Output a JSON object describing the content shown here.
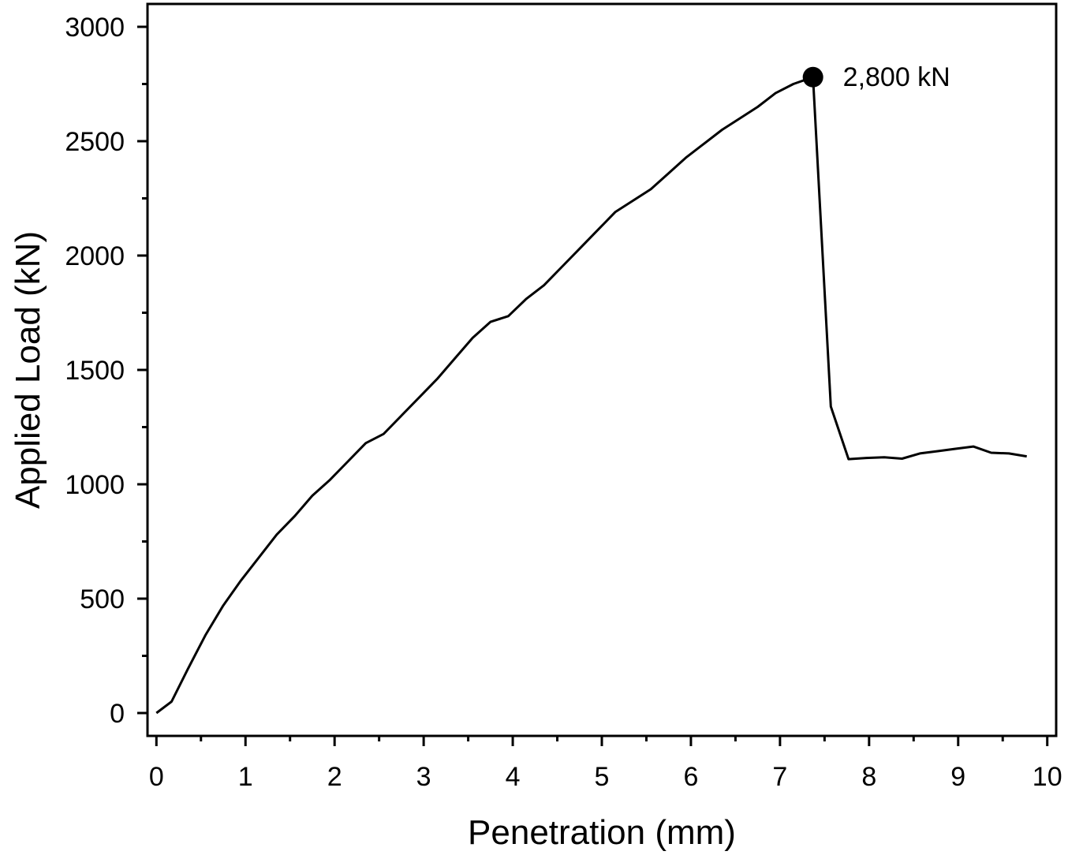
{
  "chart_data": {
    "type": "line",
    "xlabel": "Penetration (mm)",
    "ylabel": "Applied Load (kN)",
    "xlim": [
      -0.1,
      10.1
    ],
    "ylim": [
      -100,
      3100
    ],
    "xticks": [
      0,
      1,
      2,
      3,
      4,
      5,
      6,
      7,
      8,
      9,
      10
    ],
    "xtick_labels": [
      "0",
      "1",
      "2",
      "3",
      "4",
      "5",
      "6",
      "7",
      "8",
      "9",
      "10"
    ],
    "yticks": [
      0,
      500,
      1000,
      1500,
      2000,
      2500,
      3000
    ],
    "ytick_labels": [
      "0",
      "500",
      "1000",
      "1500",
      "2000",
      "2500",
      "3000"
    ],
    "grid": false,
    "series": [
      {
        "color": "#000000",
        "x": [
          0,
          0.17,
          0.35,
          0.55,
          0.75,
          0.95,
          1.15,
          1.35,
          1.55,
          1.75,
          1.95,
          2.15,
          2.35,
          2.55,
          2.75,
          2.95,
          3.15,
          3.35,
          3.55,
          3.75,
          3.95,
          4.15,
          4.35,
          4.55,
          4.75,
          4.95,
          5.15,
          5.35,
          5.55,
          5.75,
          5.95,
          6.15,
          6.35,
          6.55,
          6.75,
          6.95,
          7.15,
          7.37,
          7.57,
          7.77,
          7.97,
          8.17,
          8.37,
          8.57,
          8.77,
          8.97,
          9.17,
          9.37,
          9.57,
          9.77
        ],
        "y": [
          0,
          50,
          190,
          340,
          470,
          580,
          680,
          780,
          860,
          950,
          1020,
          1100,
          1180,
          1220,
          1300,
          1380,
          1460,
          1550,
          1640,
          1710,
          1735,
          1810,
          1870,
          1950,
          2030,
          2110,
          2190,
          2240,
          2290,
          2360,
          2430,
          2490,
          2550,
          2600,
          2650,
          2710,
          2750,
          2780,
          1340,
          1110,
          1115,
          1118,
          1112,
          1135,
          1145,
          1155,
          1165,
          1138,
          1135,
          1122
        ]
      }
    ],
    "annotations": [
      {
        "text": "2,800 kN",
        "x": 7.37,
        "y": 2780
      }
    ]
  }
}
